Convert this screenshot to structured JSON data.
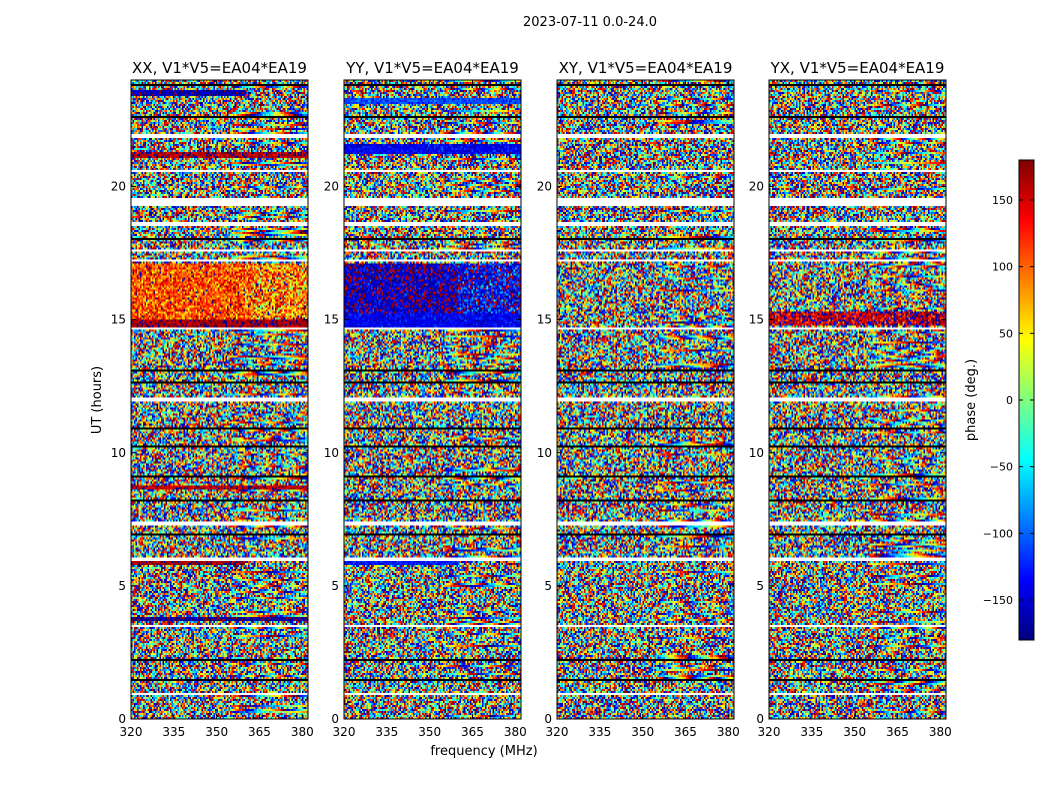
{
  "figure": {
    "suptitle": "2023-07-11 0.0-24.0",
    "xlabel": "frequency (MHz)",
    "ylabel": "UT (hours)"
  },
  "colors": {
    "flag": "#ffffff",
    "jet": [
      "#00007f",
      "#0000ff",
      "#007fff",
      "#00ffff",
      "#7fff7f",
      "#ffff00",
      "#ff7f00",
      "#ff0000",
      "#7f0000"
    ]
  },
  "colorbar": {
    "label": "phase (deg.)",
    "range": [
      -180,
      180
    ],
    "ticks": [
      -150,
      -100,
      -50,
      0,
      50,
      100,
      150
    ],
    "tick_labels": [
      "−150",
      "−100",
      "−50",
      "0",
      "50",
      "100",
      "150"
    ]
  },
  "chart_data": [
    {
      "type": "heatmap",
      "title": "XX, V1*V5=EA04*EA19",
      "x_range": [
        320,
        382
      ],
      "y_range": [
        0,
        24
      ],
      "x_ticks": [
        320,
        335,
        350,
        365,
        380
      ],
      "y_ticks": [
        0,
        5,
        10,
        15,
        20
      ],
      "structure": [
        {
          "t0": 14.6,
          "t1": 15.0,
          "f0": 320,
          "f1": 382,
          "phase": 170,
          "spread": 25
        },
        {
          "t0": 15.0,
          "t1": 17.1,
          "f0": 320,
          "f1": 360,
          "phase": 110,
          "spread": 60
        },
        {
          "t0": 15.0,
          "t1": 17.1,
          "f0": 360,
          "f1": 382,
          "phase": 90,
          "spread": 90
        },
        {
          "t0": 21.1,
          "t1": 21.3,
          "f0": 320,
          "f1": 382,
          "phase": 165,
          "spread": 30
        },
        {
          "t0": 23.4,
          "t1": 23.6,
          "f0": 320,
          "f1": 360,
          "phase": -165,
          "spread": 20
        },
        {
          "t0": 5.8,
          "t1": 6.0,
          "f0": 320,
          "f1": 360,
          "phase": 170,
          "spread": 20
        },
        {
          "t0": 8.6,
          "t1": 8.8,
          "f0": 320,
          "f1": 382,
          "phase": 165,
          "spread": 25
        },
        {
          "t0": 3.7,
          "t1": 3.8,
          "f0": 320,
          "f1": 382,
          "phase": -170,
          "spread": 20
        }
      ]
    },
    {
      "type": "heatmap",
      "title": "YY, V1*V5=EA04*EA19",
      "x_range": [
        320,
        382
      ],
      "y_range": [
        0,
        24
      ],
      "x_ticks": [
        320,
        335,
        350,
        365,
        380
      ],
      "y_ticks": [
        0,
        5,
        10,
        15,
        20
      ],
      "structure": [
        {
          "t0": 14.6,
          "t1": 15.2,
          "f0": 320,
          "f1": 382,
          "phase": -140,
          "spread": 25
        },
        {
          "t0": 15.2,
          "t1": 17.1,
          "f0": 320,
          "f1": 360,
          "phase": -160,
          "spread": 45
        },
        {
          "t0": 15.2,
          "t1": 17.1,
          "f0": 360,
          "f1": 382,
          "phase": -140,
          "spread": 70
        },
        {
          "t0": 21.2,
          "t1": 21.6,
          "f0": 320,
          "f1": 382,
          "phase": -140,
          "spread": 25
        },
        {
          "t0": 23.1,
          "t1": 23.3,
          "f0": 320,
          "f1": 382,
          "phase": -110,
          "spread": 20
        },
        {
          "t0": 5.8,
          "t1": 5.95,
          "f0": 320,
          "f1": 360,
          "phase": -130,
          "spread": 20
        }
      ]
    },
    {
      "type": "heatmap",
      "title": "XY, V1*V5=EA04*EA19",
      "x_range": [
        320,
        382
      ],
      "y_range": [
        0,
        24
      ],
      "x_ticks": [
        320,
        335,
        350,
        365,
        380
      ],
      "y_ticks": [
        0,
        5,
        10,
        15,
        20
      ],
      "structure": []
    },
    {
      "type": "heatmap",
      "title": "YX, V1*V5=EA04*EA19",
      "x_range": [
        320,
        382
      ],
      "y_range": [
        0,
        24
      ],
      "x_ticks": [
        320,
        335,
        350,
        365,
        380
      ],
      "y_ticks": [
        0,
        5,
        10,
        15,
        20
      ],
      "structure": [
        {
          "t0": 14.8,
          "t1": 15.3,
          "f0": 320,
          "f1": 382,
          "phase": 160,
          "spread": 60
        }
      ]
    }
  ],
  "flagged_hours": [
    [
      0.88,
      0.98
    ],
    [
      3.45,
      3.55
    ],
    [
      5.95,
      6.05
    ],
    [
      7.3,
      7.4
    ],
    [
      11.95,
      12.05
    ],
    [
      14.6,
      14.7
    ],
    [
      17.15,
      17.25
    ],
    [
      17.55,
      17.65
    ],
    [
      18.55,
      18.65
    ],
    [
      19.3,
      19.6
    ],
    [
      20.55,
      20.65
    ],
    [
      21.85,
      21.95
    ]
  ],
  "black_hours": [
    [
      1.45,
      1.5
    ],
    [
      2.2,
      2.25
    ],
    [
      4.1,
      4.15
    ],
    [
      4.85,
      4.9
    ],
    [
      6.9,
      6.95
    ],
    [
      8.2,
      8.25
    ],
    [
      9.1,
      9.15
    ],
    [
      10.2,
      10.25
    ],
    [
      10.9,
      10.95
    ],
    [
      11.6,
      11.65
    ],
    [
      12.6,
      12.65
    ],
    [
      13.05,
      13.1
    ],
    [
      14.45,
      14.5
    ],
    [
      18.0,
      18.05
    ],
    [
      22.6,
      22.65
    ],
    [
      23.8,
      23.85
    ]
  ]
}
